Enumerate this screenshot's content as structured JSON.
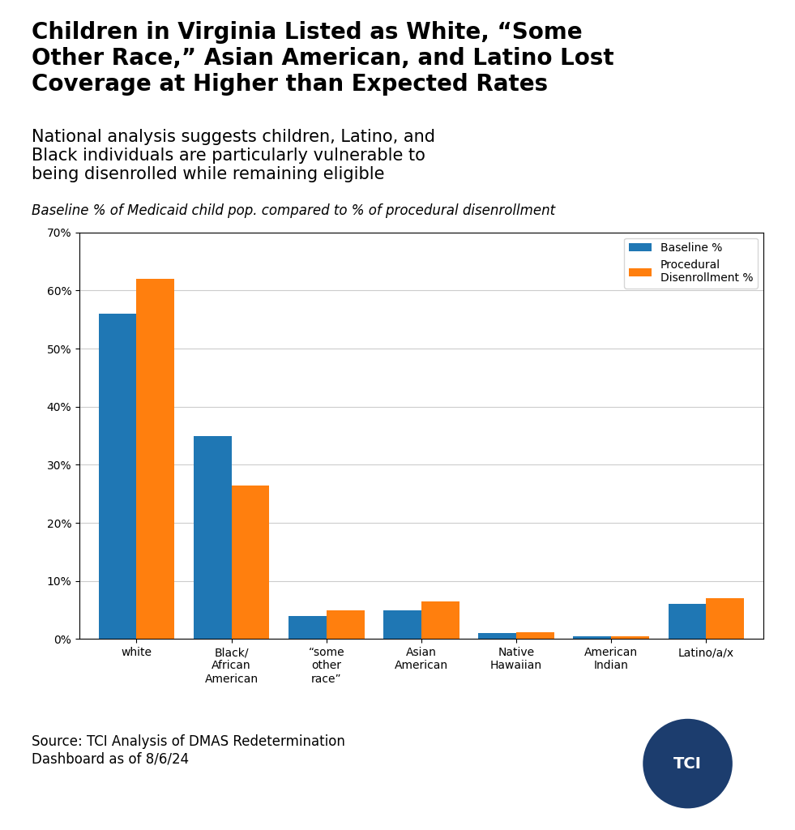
{
  "chart_data": {
    "type": "bar",
    "title": "Children in Virginia Listed as White, “Some\nOther Race,” Asian American, and Latino Lost\nCoverage at Higher than Expected Rates",
    "subtitle": "National analysis suggests children, Latino, and\nBlack individuals are particularly vulnerable to\nbeing disenrolled while remaining eligible",
    "y_label": "Baseline % of Medicaid child pop. compared to % of procedural disenrollment",
    "source": "Source: TCI Analysis of DMAS Redetermination\nDashboard as of 8/6/24",
    "annotations": [
      "TCI"
    ],
    "categories": [
      "white",
      "Black/\nAfrican\nAmerican",
      "“some\nother\nrace”",
      "Asian\nAmerican",
      "Native\nHawaiian",
      "American\nIndian",
      "Latino/a/x"
    ],
    "series": [
      {
        "name": "Baseline %",
        "values": [
          56,
          35,
          4,
          5,
          1,
          0.5,
          6
        ]
      },
      {
        "name": "Procedural\nDisenrollment %",
        "values": [
          62,
          26.5,
          5,
          6.5,
          1.2,
          0.5,
          7
        ]
      }
    ],
    "ylim": [
      0,
      70
    ],
    "yticks": [
      {
        "value": 0,
        "label": "0%"
      },
      {
        "value": 10,
        "label": "10%"
      },
      {
        "value": 20,
        "label": "20%"
      },
      {
        "value": 30,
        "label": "30%"
      },
      {
        "value": 40,
        "label": "40%"
      },
      {
        "value": 50,
        "label": "50%"
      },
      {
        "value": 60,
        "label": "60%"
      },
      {
        "value": 70,
        "label": "70%"
      }
    ],
    "grid": true,
    "legend": "upper right"
  }
}
